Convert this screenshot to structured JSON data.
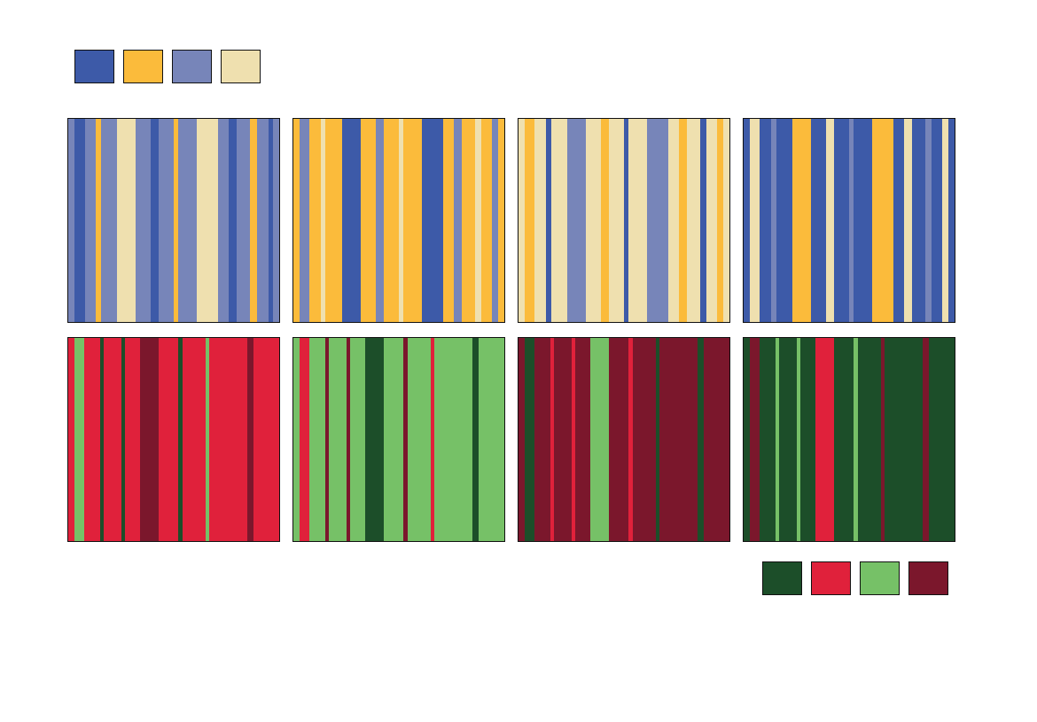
{
  "palettes": {
    "blue_yellow": [
      {
        "name": "royal-blue",
        "color": "#3d5aa8"
      },
      {
        "name": "amber",
        "color": "#fbbb3b"
      },
      {
        "name": "periwinkle",
        "color": "#7785b9"
      },
      {
        "name": "cream",
        "color": "#efe0af"
      }
    ],
    "red_green": [
      {
        "name": "dark-green",
        "color": "#1c4e29"
      },
      {
        "name": "crimson",
        "color": "#e0213b"
      },
      {
        "name": "light-green",
        "color": "#76c167"
      },
      {
        "name": "maroon",
        "color": "#7b172c"
      }
    ]
  },
  "panels": {
    "top": [
      {
        "base": "#7785b9",
        "stripes": [
          {
            "s": 0.03,
            "e": 0.08,
            "c": "#3d5aa8"
          },
          {
            "s": 0.13,
            "e": 0.155,
            "c": "#fbbb3b"
          },
          {
            "s": 0.23,
            "e": 0.32,
            "c": "#efe0af"
          },
          {
            "s": 0.39,
            "e": 0.43,
            "c": "#3d5aa8"
          },
          {
            "s": 0.5,
            "e": 0.52,
            "c": "#fbbb3b"
          },
          {
            "s": 0.61,
            "e": 0.71,
            "c": "#efe0af"
          },
          {
            "s": 0.76,
            "e": 0.8,
            "c": "#3d5aa8"
          },
          {
            "s": 0.86,
            "e": 0.895,
            "c": "#fbbb3b"
          },
          {
            "s": 0.95,
            "e": 0.97,
            "c": "#3d5aa8"
          }
        ]
      },
      {
        "base": "#fbbb3b",
        "stripes": [
          {
            "s": 0.03,
            "e": 0.075,
            "c": "#7785b9"
          },
          {
            "s": 0.13,
            "e": 0.15,
            "c": "#efe0af"
          },
          {
            "s": 0.23,
            "e": 0.32,
            "c": "#3d5aa8"
          },
          {
            "s": 0.39,
            "e": 0.43,
            "c": "#7785b9"
          },
          {
            "s": 0.5,
            "e": 0.52,
            "c": "#efe0af"
          },
          {
            "s": 0.61,
            "e": 0.71,
            "c": "#3d5aa8"
          },
          {
            "s": 0.76,
            "e": 0.8,
            "c": "#7785b9"
          },
          {
            "s": 0.86,
            "e": 0.89,
            "c": "#efe0af"
          },
          {
            "s": 0.94,
            "e": 0.97,
            "c": "#7785b9"
          }
        ]
      },
      {
        "base": "#efe0af",
        "stripes": [
          {
            "s": 0.03,
            "e": 0.075,
            "c": "#fbbb3b"
          },
          {
            "s": 0.13,
            "e": 0.155,
            "c": "#3d5aa8"
          },
          {
            "s": 0.23,
            "e": 0.32,
            "c": "#7785b9"
          },
          {
            "s": 0.39,
            "e": 0.43,
            "c": "#fbbb3b"
          },
          {
            "s": 0.5,
            "e": 0.52,
            "c": "#3d5aa8"
          },
          {
            "s": 0.61,
            "e": 0.71,
            "c": "#7785b9"
          },
          {
            "s": 0.76,
            "e": 0.8,
            "c": "#fbbb3b"
          },
          {
            "s": 0.86,
            "e": 0.89,
            "c": "#3d5aa8"
          },
          {
            "s": 0.94,
            "e": 0.97,
            "c": "#fbbb3b"
          }
        ]
      },
      {
        "base": "#3d5aa8",
        "stripes": [
          {
            "s": 0.03,
            "e": 0.075,
            "c": "#efe0af"
          },
          {
            "s": 0.13,
            "e": 0.155,
            "c": "#7785b9"
          },
          {
            "s": 0.23,
            "e": 0.32,
            "c": "#fbbb3b"
          },
          {
            "s": 0.39,
            "e": 0.43,
            "c": "#efe0af"
          },
          {
            "s": 0.5,
            "e": 0.52,
            "c": "#7785b9"
          },
          {
            "s": 0.61,
            "e": 0.71,
            "c": "#fbbb3b"
          },
          {
            "s": 0.76,
            "e": 0.8,
            "c": "#efe0af"
          },
          {
            "s": 0.86,
            "e": 0.89,
            "c": "#7785b9"
          },
          {
            "s": 0.94,
            "e": 0.97,
            "c": "#efe0af"
          }
        ]
      }
    ],
    "bottom": [
      {
        "base": "#e0213b",
        "stripes": [
          {
            "s": 0.03,
            "e": 0.075,
            "c": "#76c167"
          },
          {
            "s": 0.15,
            "e": 0.17,
            "c": "#1c4e29"
          },
          {
            "s": 0.25,
            "e": 0.27,
            "c": "#1c4e29"
          },
          {
            "s": 0.34,
            "e": 0.43,
            "c": "#7b172c"
          },
          {
            "s": 0.52,
            "e": 0.54,
            "c": "#1c4e29"
          },
          {
            "s": 0.65,
            "e": 0.67,
            "c": "#76c167"
          },
          {
            "s": 0.85,
            "e": 0.88,
            "c": "#7b172c"
          }
        ]
      },
      {
        "base": "#76c167",
        "stripes": [
          {
            "s": 0.03,
            "e": 0.075,
            "c": "#e0213b"
          },
          {
            "s": 0.15,
            "e": 0.17,
            "c": "#7b172c"
          },
          {
            "s": 0.25,
            "e": 0.27,
            "c": "#7b172c"
          },
          {
            "s": 0.34,
            "e": 0.43,
            "c": "#1c4e29"
          },
          {
            "s": 0.52,
            "e": 0.54,
            "c": "#7b172c"
          },
          {
            "s": 0.65,
            "e": 0.67,
            "c": "#e0213b"
          },
          {
            "s": 0.85,
            "e": 0.88,
            "c": "#1c4e29"
          }
        ]
      },
      {
        "base": "#7b172c",
        "stripes": [
          {
            "s": 0.03,
            "e": 0.075,
            "c": "#1c4e29"
          },
          {
            "s": 0.15,
            "e": 0.17,
            "c": "#e0213b"
          },
          {
            "s": 0.25,
            "e": 0.27,
            "c": "#e0213b"
          },
          {
            "s": 0.34,
            "e": 0.43,
            "c": "#76c167"
          },
          {
            "s": 0.52,
            "e": 0.54,
            "c": "#e0213b"
          },
          {
            "s": 0.65,
            "e": 0.67,
            "c": "#1c4e29"
          },
          {
            "s": 0.85,
            "e": 0.88,
            "c": "#1c4e29"
          }
        ]
      },
      {
        "base": "#1c4e29",
        "stripes": [
          {
            "s": 0.03,
            "e": 0.075,
            "c": "#7b172c"
          },
          {
            "s": 0.15,
            "e": 0.17,
            "c": "#76c167"
          },
          {
            "s": 0.25,
            "e": 0.27,
            "c": "#76c167"
          },
          {
            "s": 0.34,
            "e": 0.43,
            "c": "#e0213b"
          },
          {
            "s": 0.52,
            "e": 0.54,
            "c": "#76c167"
          },
          {
            "s": 0.65,
            "e": 0.67,
            "c": "#7b172c"
          },
          {
            "s": 0.85,
            "e": 0.88,
            "c": "#7b172c"
          }
        ]
      }
    ]
  }
}
